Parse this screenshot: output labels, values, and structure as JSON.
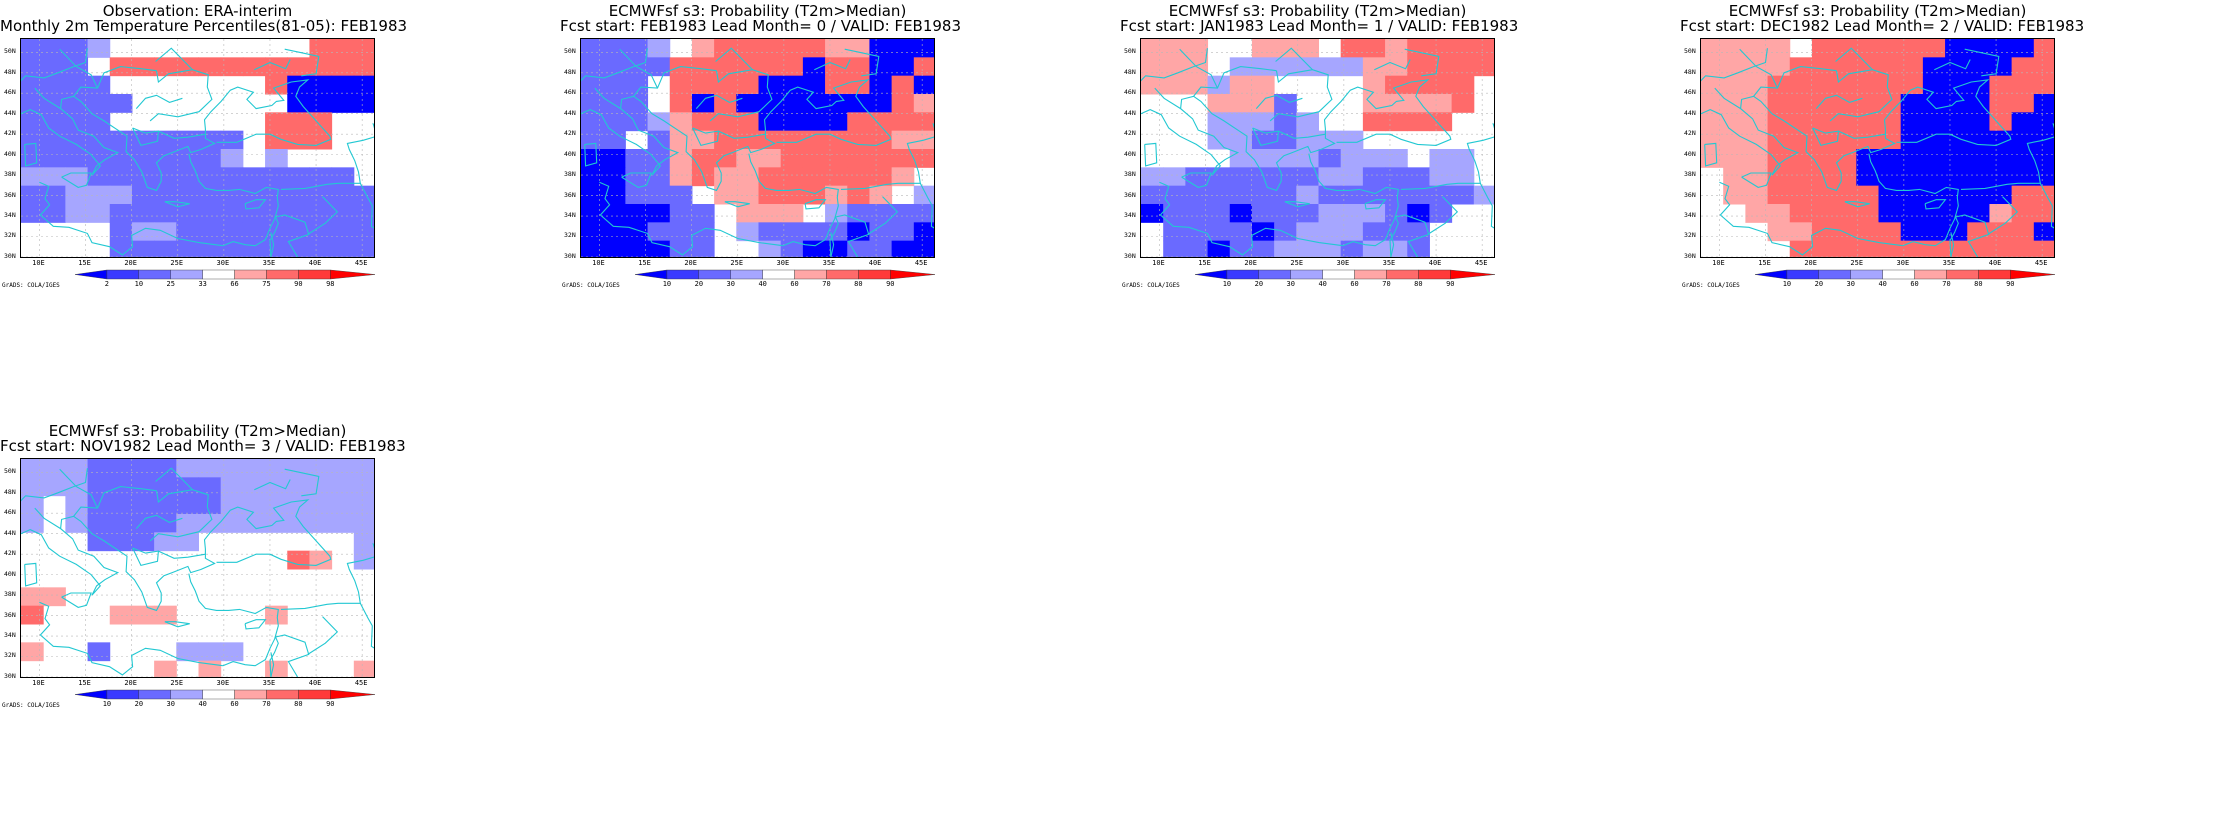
{
  "colors": {
    "blue_scale": [
      "#0000ff",
      "#3a3aff",
      "#6a6aff",
      "#a6a6ff"
    ],
    "red_scale": [
      "#ffa6a6",
      "#ff6a6a",
      "#ff3a3a",
      "#ff0000"
    ],
    "neutral": "#ffffff",
    "coast": "#22c8d2",
    "grid": "#b8b8b8"
  },
  "panels": [
    {
      "title_line1": "Observation: ERA-interim",
      "title_line2": "Monthly 2m Temperature Percentiles(81-05): FEB1983",
      "colorbar_labels": [
        "2",
        "10",
        "25",
        "33",
        "66",
        "75",
        "90",
        "98"
      ],
      "credit": "GrADS: COLA/IGES",
      "lat_labels": [
        "50N",
        "48N",
        "46N",
        "44N",
        "42N",
        "40N",
        "38N",
        "36N",
        "34N",
        "32N",
        "30N"
      ],
      "lon_labels": [
        "10E",
        "15E",
        "20E",
        "25E",
        "30E",
        "35E",
        "40E",
        "45E"
      ],
      "grid_cells": [
        "BBBCW000WW000RRR",
        "BBB0RRRRRRRRRRRR",
        "BBBB00WWW00RSSSS",
        "BBBBB00WWW00SSSS",
        "BBBBWWWWWW0RRRWW",
        "BBBBBBBBBB0RRRWW",
        "BBBBBBBBBCWCWWWW",
        "CCCBBBBBBBBBBBBW",
        "BBCCCBBBBBBBBBBB",
        "BBCCBBBBBBBBBBBB",
        "WWWWBCCBBBBBBBBB",
        "WWWWBBBBBBBBBBBB"
      ]
    },
    {
      "title_line1": "ECMWFsf s3: Probability (T2m>Median)",
      "title_line2": "Fcst start: FEB1983  Lead Month= 0 / VALID: FEB1983",
      "colorbar_labels": [
        "10",
        "20",
        "30",
        "40",
        "60",
        "70",
        "80",
        "90"
      ],
      "credit": "GrADS: COLA/IGES",
      "lat_labels": [
        "50N",
        "48N",
        "46N",
        "44N",
        "42N",
        "40N",
        "38N",
        "36N",
        "34N",
        "32N",
        "30N"
      ],
      "lon_labels": [
        "10E",
        "15E",
        "20E",
        "25E",
        "30E",
        "35E",
        "40E",
        "45E"
      ],
      "grid_cells": [
        "BBBCWPRRRRRPPSSS",
        "BBBBRRRRRRSRRSSR",
        "BBBWRRRRSSSRRSRS",
        "BBBWRSRSSSSSSSRP",
        "BBBCPRRRSSSSRRRR",
        "BBWBPPRRRRRRRRPP",
        "SSBBPRRPPRRRRRRR",
        "SSBBPRPPRRRRRRPW",
        "SSBBBWPPRRRPRPWC",
        "SSSSBBWPPPWCBBBB",
        "SSSBBBWCBBBBSBBS",
        "SSSSBBWWCBSSBBSS"
      ]
    },
    {
      "title_line1": "ECMWFsf s3: Probability (T2m>Median)",
      "title_line2": "Fcst start: JAN1983  Lead Month= 1 / VALID: FEB1983",
      "colorbar_labels": [
        "10",
        "20",
        "30",
        "40",
        "60",
        "70",
        "80",
        "90"
      ],
      "credit": "GrADS: COLA/IGES",
      "lat_labels": [
        "50N",
        "48N",
        "46N",
        "44N",
        "42N",
        "40N",
        "38N",
        "36N",
        "34N",
        "32N",
        "30N"
      ],
      "lon_labels": [
        "10E",
        "15E",
        "20E",
        "25E",
        "30E",
        "35E",
        "40E",
        "45E"
      ],
      "grid_cells": [
        "PPPWWPPPWRRPRRRR",
        "PPPWCCCCCCPPRRRR",
        "PPPCPPWWWWPRRRRW",
        "WWWPPPBWWWPPPPRW",
        "WWWCCCBCWWRRRRWW",
        "WWWCCBBCCCWWWWWW",
        "WWWWCCCCBCCCWCCW",
        "CCBBBBBBCCBBBCCW",
        "BBBBBBBCBBBBBBBC",
        "SBBBSBBBCCCBSBWW",
        "WBBBBSBCCCBBBWWW",
        "WBBSBBCCCBCCBWWW"
      ]
    },
    {
      "title_line1": "ECMWFsf s3: Probability (T2m>Median)",
      "title_line2": "Fcst start: DEC1982  Lead Month= 2 / VALID: FEB1983",
      "colorbar_labels": [
        "10",
        "20",
        "30",
        "40",
        "60",
        "70",
        "80",
        "90"
      ],
      "credit": "GrADS: COLA/IGES",
      "lat_labels": [
        "50N",
        "48N",
        "46N",
        "44N",
        "42N",
        "40N",
        "38N",
        "36N",
        "34N",
        "32N",
        "30N"
      ],
      "lon_labels": [
        "10E",
        "15E",
        "20E",
        "25E",
        "30E",
        "35E",
        "40E",
        "45E"
      ],
      "grid_cells": [
        "PPPPWRRRRRRSSSSR",
        "PPPPRRRRRRSSSSRR",
        "PPPRRRRRRRSSSRRR",
        "PPPRRRRRRSSSSRRS",
        "PPPRRRRRRSSSSRSS",
        "PPPRRRRRRSSSSSSS",
        "PPPRRRRSSSSSSSSS",
        "WPPRRRRSSSSSSSSS",
        "WPPRRRRRSSSSSSRR",
        "WWPPRRRRSSSSSPRR",
        "WWWPPRRRRSSSRRRS",
        "WWWWRRRRRRRRRRRR"
      ]
    },
    {
      "title_line1": "ECMWFsf s3: Probability (T2m>Median)",
      "title_line2": "Fcst start: NOV1982  Lead Month= 3 / VALID: FEB1983",
      "colorbar_labels": [
        "10",
        "20",
        "30",
        "40",
        "60",
        "70",
        "80",
        "90"
      ],
      "credit": "GrADS: COLA/IGES",
      "lat_labels": [
        "50N",
        "48N",
        "46N",
        "44N",
        "42N",
        "40N",
        "38N",
        "36N",
        "34N",
        "32N",
        "30N"
      ],
      "lon_labels": [
        "10E",
        "15E",
        "20E",
        "25E",
        "30E",
        "35E",
        "40E",
        "45E"
      ],
      "grid_cells": [
        "CCCBBBBCCCCCCCCC",
        "CCCBBBBBBCCCCCCC",
        "CWCBBBBBBCCCCCCC",
        "CWCBBBBCCCCCCCCC",
        "WWWBBBCCWWWWWWWC",
        "WWWWWWWWWWWWRPWC",
        "WWWWWWWWWWWWWWWW",
        "PPWWWWWWWWWWWWWW",
        "RWWWPPPWWWWPWWWW",
        "WWWWWWWWWWWWWWWW",
        "PWWBWWWCCCWWWWWW",
        "WWWWWWPWPWWPWWWP"
      ]
    }
  ]
}
